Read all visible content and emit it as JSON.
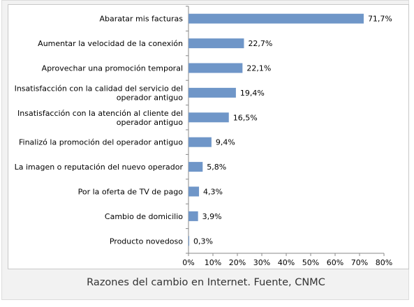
{
  "caption": "Razones del cambio en Internet. Fuente, CNMC",
  "chart_data": {
    "type": "bar",
    "orientation": "horizontal",
    "categories": [
      [
        "Abaratar mis facturas"
      ],
      [
        "Aumentar la velocidad de la conexión"
      ],
      [
        "Aprovechar una promoción temporal"
      ],
      [
        "Insatisfacción con la calidad del servicio del",
        "operador antiguo"
      ],
      [
        "Insatisfacción con la atención al cliente del",
        "operador antiguo"
      ],
      [
        "Finalizó la promoción del operador antiguo"
      ],
      [
        "La imagen o reputación del nuevo operador"
      ],
      [
        "Por la oferta de TV de pago"
      ],
      [
        "Cambio de domicilio"
      ],
      [
        "Producto novedoso"
      ]
    ],
    "values": [
      71.7,
      22.7,
      22.1,
      19.4,
      16.5,
      9.4,
      5.8,
      4.3,
      3.9,
      0.3
    ],
    "value_labels": [
      "71,7%",
      "22,7%",
      "22,1%",
      "19,4%",
      "16,5%",
      "9,4%",
      "5,8%",
      "4,3%",
      "3,9%",
      "0,3%"
    ],
    "xlim": [
      0,
      80
    ],
    "xticks": [
      0,
      10,
      20,
      30,
      40,
      50,
      60,
      70,
      80
    ],
    "xtick_labels": [
      "0%",
      "10%",
      "20%",
      "30%",
      "40%",
      "50%",
      "60%",
      "70%",
      "80%"
    ],
    "grid": false,
    "legend": "none",
    "bar_color": "#6f96c8",
    "axis_color": "#888888"
  }
}
